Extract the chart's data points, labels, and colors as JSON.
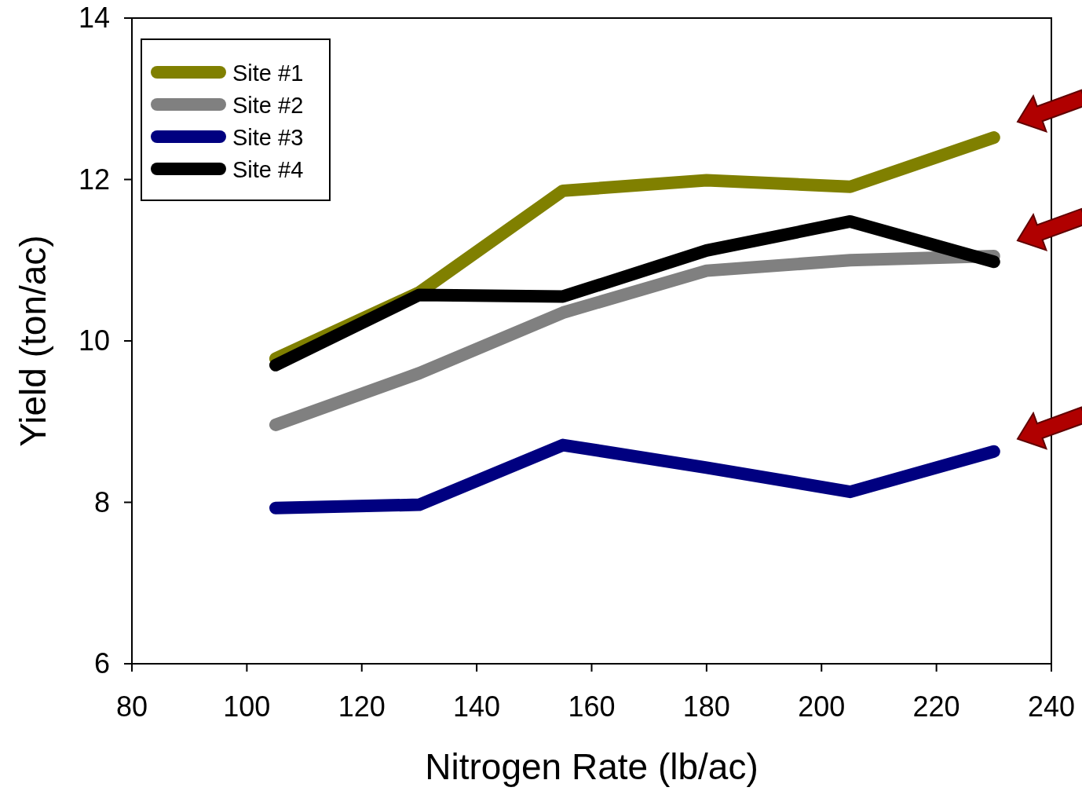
{
  "chart_data": {
    "type": "line",
    "xlabel": "Nitrogen Rate (lb/ac)",
    "ylabel": "Yield (ton/ac)",
    "x": [
      105,
      130,
      155,
      180,
      205,
      230
    ],
    "xlim": [
      80,
      240
    ],
    "xticks": [
      80,
      100,
      120,
      140,
      160,
      180,
      200,
      220,
      240
    ],
    "ylim": [
      6,
      14
    ],
    "yticks": [
      6,
      8,
      10,
      12,
      14
    ],
    "legend": "top left",
    "grid": false,
    "marker": "none",
    "line_style": "solid",
    "series": [
      {
        "name": "Site #1",
        "color": "#808000",
        "values": [
          9.78,
          10.6,
          11.86,
          11.99,
          11.91,
          12.52
        ]
      },
      {
        "name": "Site #2",
        "color": "#808080",
        "values": [
          8.96,
          9.6,
          10.35,
          10.87,
          11.0,
          11.05
        ]
      },
      {
        "name": "Site #3",
        "color": "#000080",
        "values": [
          7.93,
          7.97,
          8.71,
          8.43,
          8.13,
          8.63
        ]
      },
      {
        "name": "Site #4",
        "color": "#000000",
        "values": [
          9.7,
          10.57,
          10.55,
          11.12,
          11.48,
          10.98
        ]
      }
    ]
  }
}
